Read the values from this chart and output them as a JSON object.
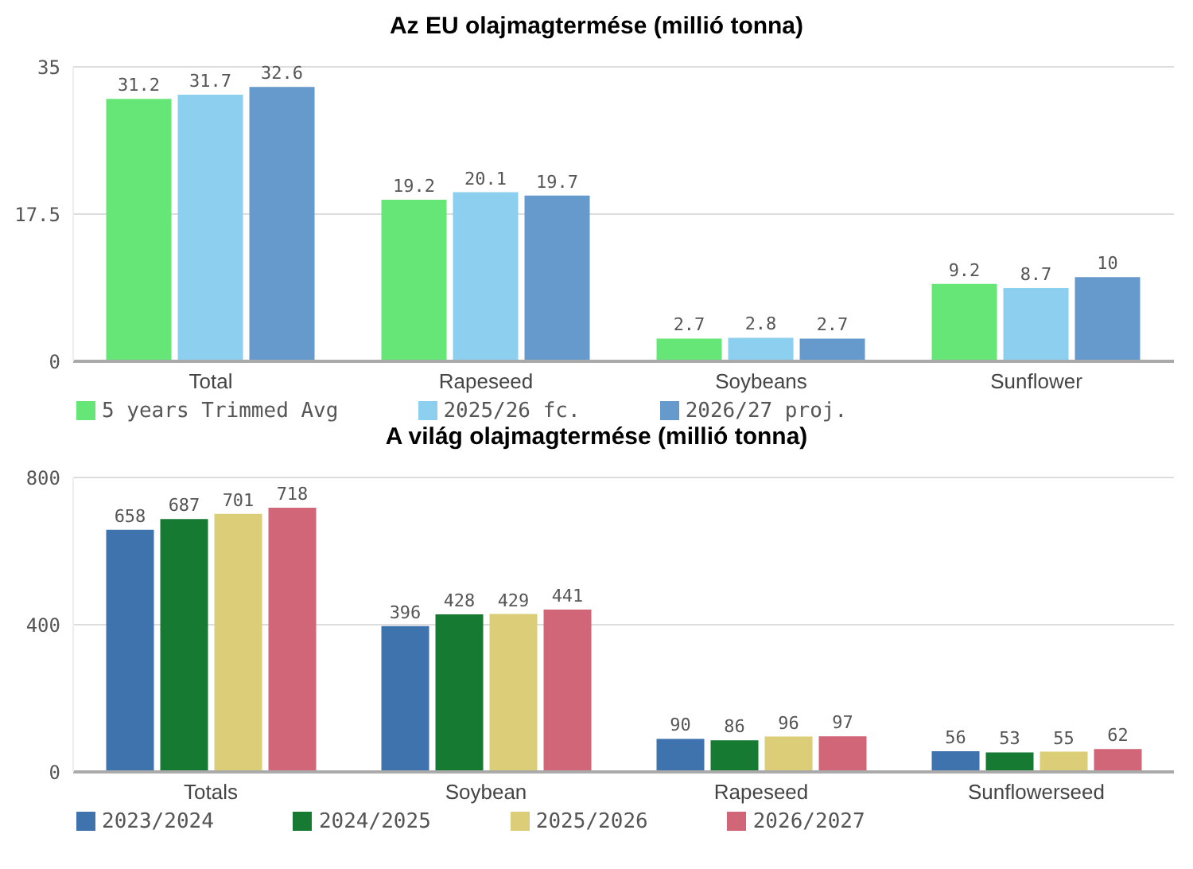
{
  "chart_data": [
    {
      "type": "bar",
      "title": "Az EU olajmagtermése (millió tonna)",
      "categories": [
        "Total",
        "Rapeseed",
        "Soybeans",
        "Sunflower"
      ],
      "series": [
        {
          "name": "5 years Trimmed Avg",
          "color": "#66e677",
          "values": [
            31.2,
            19.2,
            2.7,
            9.2
          ]
        },
        {
          "name": "2025/26 fc.",
          "color": "#8ccfef",
          "values": [
            31.7,
            20.1,
            2.8,
            8.7
          ]
        },
        {
          "name": "2026/27 proj.",
          "color": "#6699cc",
          "values": [
            32.6,
            19.7,
            2.7,
            10
          ]
        }
      ],
      "ylim": [
        0,
        35
      ],
      "yticks": [
        0,
        17.5,
        35
      ],
      "grid": "y",
      "legend": "bottom",
      "data_labels": true
    },
    {
      "type": "bar",
      "title": "A világ olajmagtermése (millió tonna)",
      "categories": [
        "Totals",
        "Soybean",
        "Rapeseed",
        "Sunflowerseed"
      ],
      "series": [
        {
          "name": "2023/2024",
          "color": "#3f73ad",
          "values": [
            658,
            396,
            90,
            56
          ]
        },
        {
          "name": "2024/2025",
          "color": "#167a33",
          "values": [
            687,
            428,
            86,
            53
          ]
        },
        {
          "name": "2025/2026",
          "color": "#dccd78",
          "values": [
            701,
            429,
            96,
            55
          ]
        },
        {
          "name": "2026/2027",
          "color": "#d06677",
          "values": [
            718,
            441,
            97,
            62
          ]
        }
      ],
      "ylim": [
        0,
        800
      ],
      "yticks": [
        0,
        400,
        800
      ],
      "grid": "y",
      "legend": "bottom",
      "data_labels": true
    }
  ]
}
